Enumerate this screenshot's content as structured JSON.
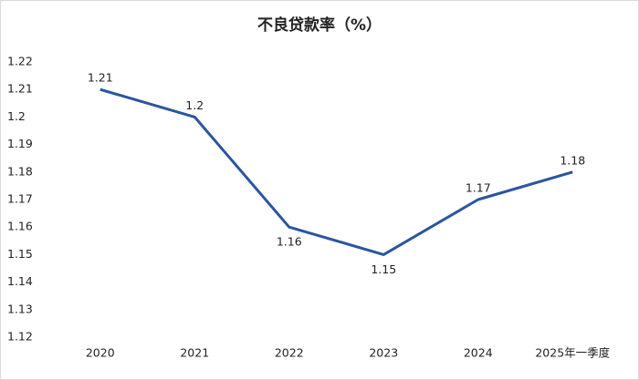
{
  "chart_data": {
    "type": "line",
    "title": "不良贷款率（%）",
    "categories": [
      "2020",
      "2021",
      "2022",
      "2023",
      "2024",
      "2025年一季度"
    ],
    "series": [
      {
        "name": "不良贷款率",
        "color": "#2b559d",
        "values": [
          1.21,
          1.2,
          1.16,
          1.15,
          1.17,
          1.18
        ]
      }
    ],
    "ylim": [
      1.12,
      1.22
    ],
    "yticks": [
      1.12,
      1.13,
      1.14,
      1.15,
      1.16,
      1.17,
      1.18,
      1.19,
      1.2,
      1.21,
      1.22
    ]
  }
}
